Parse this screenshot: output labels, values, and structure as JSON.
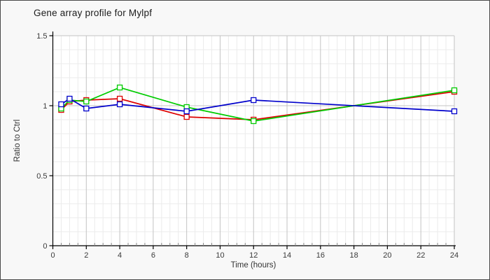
{
  "window": {
    "background": "#f8f8f8",
    "border_color": "#4a4a4a",
    "plot_background": "#ffffff"
  },
  "chart_data": {
    "type": "line",
    "title": "Gene array profile for Mylpf",
    "xlabel": "Time (hours)",
    "ylabel": "Ratio to Ctrl",
    "xlim": [
      0,
      24
    ],
    "ylim": [
      0,
      1.5
    ],
    "x_ticks": [
      0,
      2,
      4,
      6,
      8,
      10,
      12,
      14,
      16,
      18,
      20,
      22,
      24
    ],
    "y_ticks": [
      0,
      0.5,
      1,
      1.5
    ],
    "x_minor_step": 0.5,
    "y_minor_step": 0.1,
    "grid": {
      "major_color": "#c3c3c3",
      "minor_color": "#ebebeb",
      "on": true
    },
    "axis_color": "#000000",
    "legend": "none",
    "marker": "open-square",
    "x": [
      0.5,
      1,
      2,
      4,
      8,
      12,
      24
    ],
    "series": [
      {
        "name": "red",
        "color": "#dd0000",
        "values": [
          0.97,
          1.03,
          1.04,
          1.05,
          0.92,
          0.9,
          1.1
        ]
      },
      {
        "name": "green",
        "color": "#00cc00",
        "values": [
          0.98,
          1.04,
          1.03,
          1.13,
          0.99,
          0.89,
          1.11
        ]
      },
      {
        "name": "blue",
        "color": "#0000cc",
        "values": [
          1.01,
          1.05,
          0.98,
          1.01,
          0.96,
          1.04,
          0.96
        ]
      }
    ]
  }
}
